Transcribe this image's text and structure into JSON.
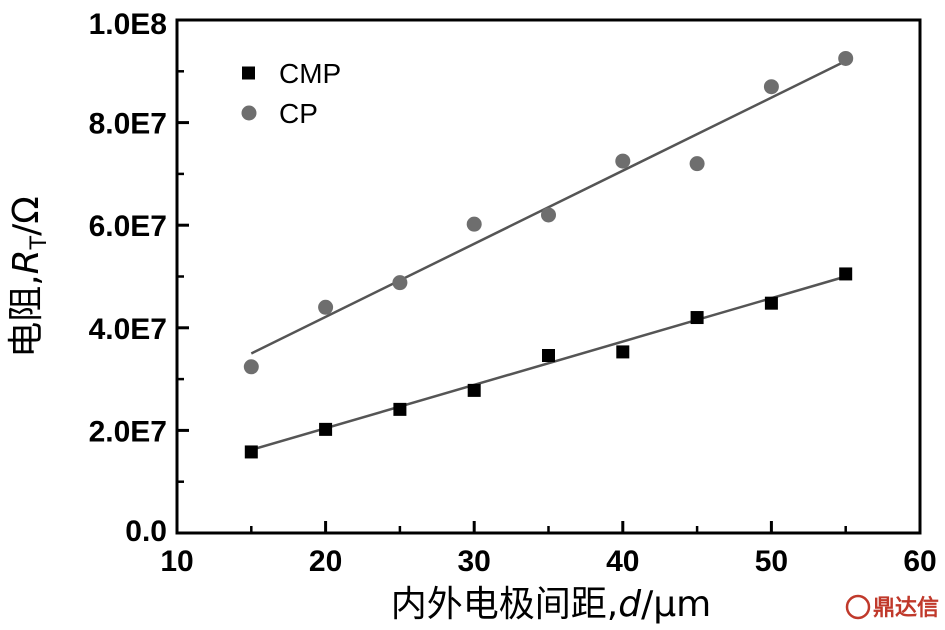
{
  "chart_data": {
    "type": "scatter",
    "xlabel": "内外电极间距,d/μm",
    "ylabel": "电阻,R_T/Ω",
    "xlim": [
      10,
      60
    ],
    "ylim": [
      0,
      100000000
    ],
    "x_ticks": [
      "10",
      "20",
      "30",
      "40",
      "50",
      "60"
    ],
    "x_tick_values": [
      10,
      20,
      30,
      40,
      50,
      60
    ],
    "y_ticks": [
      "0.0",
      "2.0E7",
      "4.0E7",
      "6.0E7",
      "8.0E7",
      "1.0E8"
    ],
    "y_tick_values": [
      0,
      20000000,
      40000000,
      60000000,
      80000000,
      100000000
    ],
    "legend_position": "top-left",
    "grid": false,
    "series": [
      {
        "name": "CMP",
        "marker": "square",
        "color": "#000000",
        "x": [
          15,
          20,
          25,
          30,
          35,
          40,
          45,
          50,
          55
        ],
        "y": [
          15800000,
          20200000,
          24100000,
          27800000,
          34600000,
          35300000,
          42000000,
          44800000,
          50500000
        ],
        "fit_line": {
          "x": [
            15,
            55
          ],
          "y": [
            16200000,
            50000000
          ]
        }
      },
      {
        "name": "CP",
        "marker": "circle",
        "color": "#6e6e6e",
        "x": [
          15,
          20,
          25,
          30,
          35,
          40,
          45,
          50,
          55
        ],
        "y": [
          32400000,
          44000000,
          48800000,
          60200000,
          62000000,
          72500000,
          72000000,
          87000000,
          92500000
        ],
        "fit_line": {
          "x": [
            15,
            55
          ],
          "y": [
            35000000,
            92000000
          ]
        }
      }
    ]
  },
  "watermark": {
    "text": "鼎达信",
    "color": "#c0392b"
  },
  "colors": {
    "axis": "#000000",
    "fit_line": "#555555"
  }
}
